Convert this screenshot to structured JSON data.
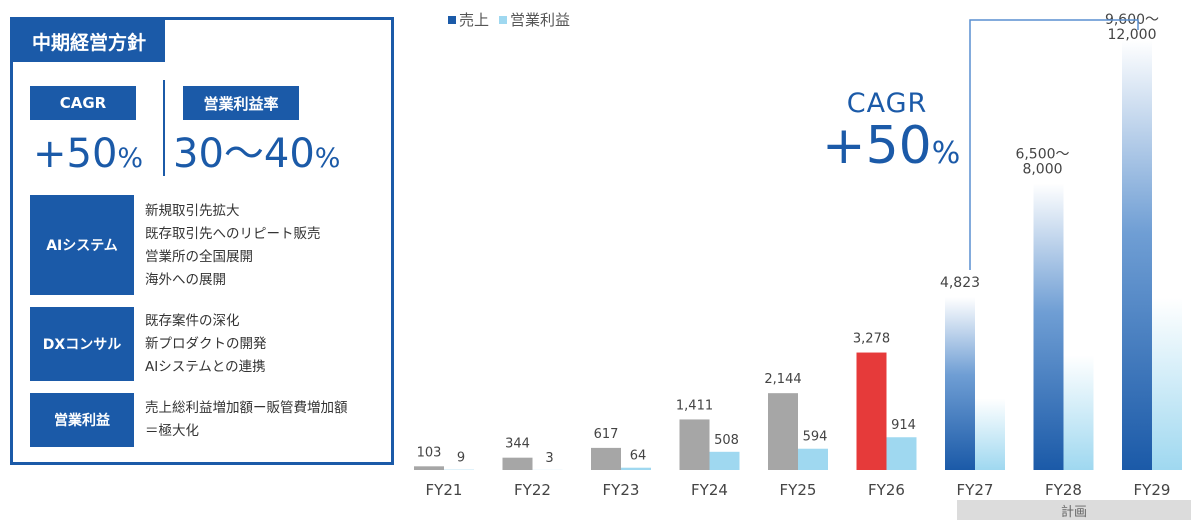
{
  "panel": {
    "title": "中期経営方針",
    "kpis": [
      {
        "label": "CAGR",
        "value": "+50",
        "unit": "%"
      },
      {
        "label": "営業利益率",
        "value": "30〜40",
        "unit": "%"
      }
    ],
    "rows": [
      {
        "label": "AIシステム",
        "items": [
          "新規取引先拡大",
          "既存取引先へのリピート販売",
          "営業所の全国展開",
          "海外への展開"
        ]
      },
      {
        "label": "DXコンサル",
        "items": [
          "既存案件の深化",
          "新プロダクトの開発",
          "AIシステムとの連携"
        ]
      },
      {
        "label": "営業利益",
        "items": [
          "売上総利益増加額ー販管費増加額",
          "＝極大化"
        ]
      }
    ]
  },
  "cagr_callout": {
    "title": "CAGR",
    "value": "+50",
    "unit": "%"
  },
  "plan_label": "計画",
  "colors": {
    "brand": "#1b5aa8",
    "sales_actual": "#a6a6a6",
    "sales_highlight": "#e63a3a",
    "sales_plan": "#1b5aa8",
    "op_profit": "#9fd8f0"
  },
  "chart_data": {
    "type": "bar",
    "categories": [
      "FY21",
      "FY22",
      "FY23",
      "FY24",
      "FY25",
      "FY26",
      "FY27",
      "FY28",
      "FY29"
    ],
    "series": [
      {
        "name": "売上",
        "values": [
          103,
          344,
          617,
          1411,
          2144,
          3278,
          4823,
          8000,
          12000
        ],
        "labels": [
          "103",
          "344",
          "617",
          "1,411",
          "2,144",
          "3,278",
          "4,823",
          "6,500〜\n8,000",
          "9,600〜\n12,000"
        ]
      },
      {
        "name": "営業利益",
        "values": [
          9,
          3,
          64,
          508,
          594,
          914,
          2000,
          3200,
          4800
        ],
        "labels": [
          "9",
          "3",
          "64",
          "508",
          "594",
          "914",
          "",
          "",
          ""
        ]
      }
    ],
    "plan_categories": [
      "FY27",
      "FY28",
      "FY29"
    ],
    "highlight_category": "FY26",
    "legend_position": "top-left",
    "ylim": [
      0,
      12000
    ],
    "grid": false
  }
}
